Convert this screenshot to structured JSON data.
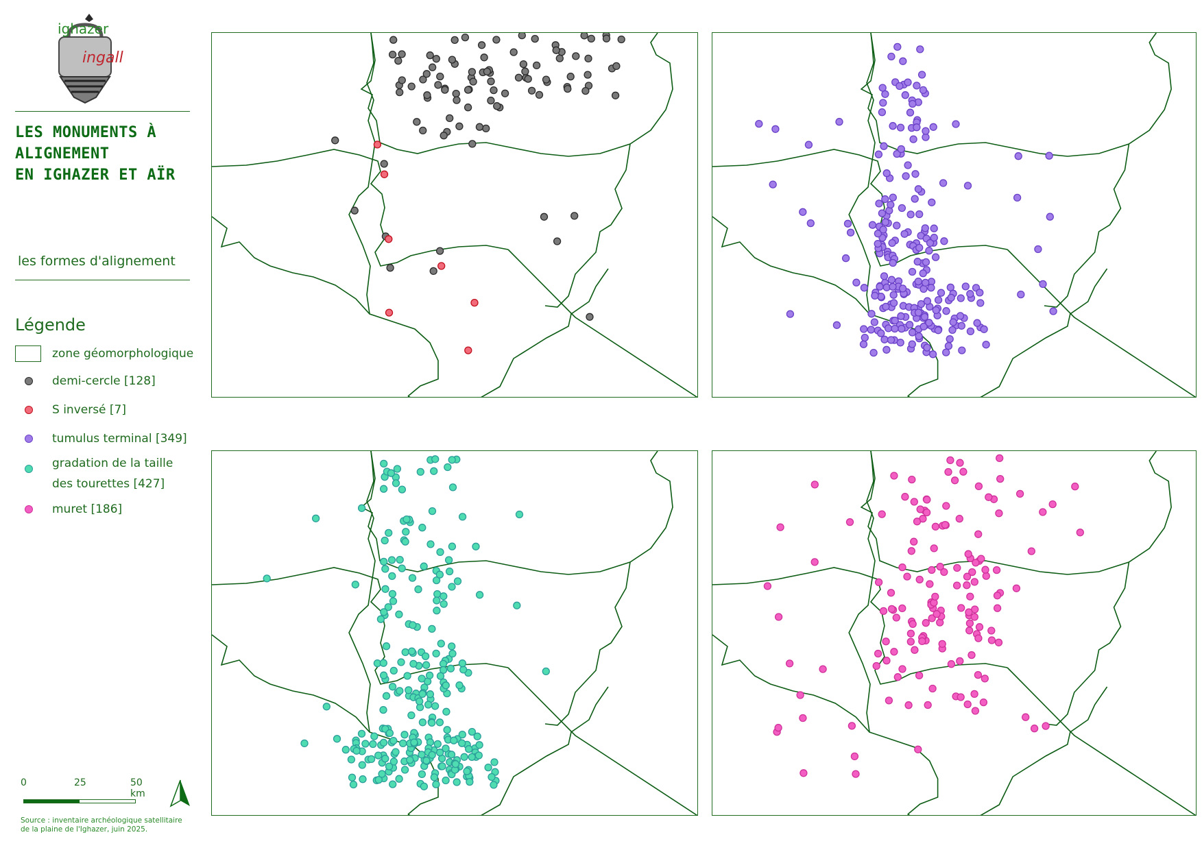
{
  "logo": {
    "line1": "ighazer",
    "line2": "ingall"
  },
  "title": {
    "lines": [
      "LES MONUMENTS À",
      "ALIGNEMENT",
      "EN IGHAZER ET AÏR"
    ]
  },
  "subtitle": "les formes d'alignement",
  "legend": {
    "title": "Légende",
    "zone": "zone géomorphologique",
    "items": [
      {
        "label": "demi-cercle [128]",
        "fill": "#7a7a7a",
        "stroke": "#2b2b2b"
      },
      {
        "label": "S inversé [7]",
        "fill": "#f26b7a",
        "stroke": "#c0101e"
      },
      {
        "label": "tumulus terminal [349]",
        "fill": "#a07de8",
        "stroke": "#6a40c8"
      },
      {
        "label": "gradation de la taille",
        "label2": "des tourettes [427]",
        "fill": "#4fdcb0",
        "stroke": "#2b9e9a"
      },
      {
        "label": "muret [186]",
        "fill": "#f25ec2",
        "stroke": "#d0309a"
      }
    ]
  },
  "scalebar": {
    "labels": [
      "0",
      "25",
      "50 km"
    ]
  },
  "source": {
    "line1": "Source : inventaire archéologique satellitaire",
    "line2": "de la plaine de l'Ighazer, juin 2025."
  },
  "colors": {
    "boundary": "#0c5c14",
    "text": "#1f6b1f"
  },
  "icons": {
    "north": "north-arrow-icon",
    "logo": "ighazer-ingall-logo-icon"
  }
}
